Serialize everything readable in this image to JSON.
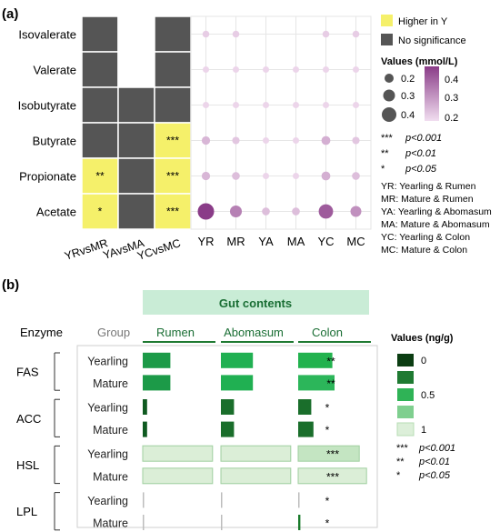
{
  "panel_a": {
    "label": "(a)",
    "legend_higher": "Higher in Y",
    "legend_nosig": "No significance",
    "values_title": "Values (mmol/L)",
    "size_labels": [
      "0.2",
      "0.3",
      "0.4"
    ],
    "color_labels": [
      "0.4",
      "0.3",
      "0.2"
    ],
    "sig_notes": [
      {
        "stars": "***",
        "p": "p<0.001"
      },
      {
        "stars": "**",
        "p": "p<0.01"
      },
      {
        "stars": "*",
        "p": "p<0.05"
      }
    ],
    "abbrev": [
      "YR: Yearling & Rumen",
      "MR: Mature & Rumen",
      "YA: Yearling & Abomasum",
      "MA: Mature & Abomasum",
      "YC: Yearling & Colon",
      "MC: Mature & Colon"
    ],
    "colors": {
      "higher": "#f5f06a",
      "nosig": "#555555",
      "dot_low": "#ecd5ea",
      "dot_high": "#8a3c88",
      "grid": "#e6e6e6"
    }
  },
  "panel_b": {
    "label": "(b)",
    "banner": "Gut contents",
    "col_enzyme": "Enzyme",
    "col_group": "Group",
    "legend_title": "Values (ng/g)",
    "legend_labels": [
      "0",
      "",
      "0.5",
      "",
      "1"
    ],
    "legend_colors": [
      "#0b3d12",
      "#1f7a32",
      "#2fb356",
      "#7fcf8f",
      "#dcefd9"
    ],
    "sig_notes": [
      {
        "stars": "***",
        "p": "p<0.001"
      },
      {
        "stars": "**",
        "p": "p<0.01"
      },
      {
        "stars": "*",
        "p": "p<0.05"
      }
    ],
    "colors": {
      "banner_bg": "#c9ecd6",
      "header_text": "#1a6e34"
    }
  },
  "chart_data": [
    {
      "type": "heatmap",
      "rows": [
        "Isovalerate",
        "Valerate",
        "Isobutyrate",
        "Butyrate",
        "Propionate",
        "Acetate"
      ],
      "columns": [
        "YRvsMR",
        "YAvsMA",
        "YCvsMC"
      ],
      "cells": [
        [
          "nosig",
          "none",
          "nosig"
        ],
        [
          "nosig",
          "none",
          "nosig"
        ],
        [
          "nosig",
          "nosig",
          "nosig"
        ],
        [
          "nosig",
          "nosig",
          "higher"
        ],
        [
          "higher",
          "nosig",
          "higher"
        ],
        [
          "higher",
          "nosig",
          "higher"
        ]
      ],
      "stars": [
        [
          "",
          "",
          ""
        ],
        [
          "",
          "",
          ""
        ],
        [
          "",
          "",
          ""
        ],
        [
          "",
          "",
          "***"
        ],
        [
          "**",
          "",
          "***"
        ],
        [
          "*",
          "",
          "***"
        ]
      ]
    },
    {
      "type": "scatter",
      "rows": [
        "Isovalerate",
        "Valerate",
        "Isobutyrate",
        "Butyrate",
        "Propionate",
        "Acetate"
      ],
      "columns": [
        "YR",
        "MR",
        "YA",
        "MA",
        "YC",
        "MC"
      ],
      "values": [
        [
          0.21,
          0.21,
          null,
          null,
          0.21,
          0.21
        ],
        [
          0.2,
          0.2,
          0.2,
          0.2,
          0.2,
          0.2
        ],
        [
          0.2,
          0.2,
          0.2,
          0.2,
          0.2,
          0.2
        ],
        [
          0.24,
          0.22,
          0.2,
          0.2,
          0.25,
          0.22
        ],
        [
          0.24,
          0.23,
          0.2,
          0.2,
          0.25,
          0.23
        ],
        [
          0.43,
          0.31,
          0.23,
          0.23,
          0.36,
          0.29
        ]
      ],
      "size_range": [
        0.2,
        0.4
      ],
      "color_range": [
        0.2,
        0.4
      ]
    },
    {
      "type": "bar",
      "orientation": "horizontal",
      "enzymes": [
        "FAS",
        "ACC",
        "HSL",
        "LPL"
      ],
      "groups": [
        "Yearling",
        "Mature"
      ],
      "columns": [
        "Rumen",
        "Abomasum",
        "Colon"
      ],
      "values": [
        [
          [
            0.38,
            0.44,
            0.47
          ],
          [
            0.38,
            0.44,
            0.5
          ]
        ],
        [
          [
            0.06,
            0.18,
            0.18
          ],
          [
            0.06,
            0.18,
            0.21
          ]
        ],
        [
          [
            0.96,
            0.96,
            0.84
          ],
          [
            0.96,
            0.96,
            0.94
          ]
        ],
        [
          [
            0.01,
            0.01,
            0.01
          ],
          [
            0.01,
            0.01,
            0.03
          ]
        ]
      ],
      "colors": [
        [
          [
            "#1c9a48",
            "#20b052",
            "#22b24e"
          ],
          [
            "#1c9a48",
            "#20b052",
            "#2cb65a"
          ]
        ],
        [
          [
            "#0f5a20",
            "#1a6e2b",
            "#1a6e2b"
          ],
          [
            "#0f5a20",
            "#1a6e2b",
            "#1a6e2b"
          ]
        ],
        [
          [
            "#dbeed7",
            "#dbeed7",
            "#c4e5c2"
          ],
          [
            "#dbeed7",
            "#dbeed7",
            "#dbeed7"
          ]
        ],
        [
          [
            "#bcbcbc",
            "#bcbcbc",
            "#bcbcbc"
          ],
          [
            "#bcbcbc",
            "#bcbcbc",
            "#1a7a2b"
          ]
        ]
      ],
      "stars": [
        [
          [
            "",
            "",
            "**"
          ],
          [
            "",
            "",
            "**"
          ]
        ],
        [
          [
            "",
            "",
            "*"
          ],
          [
            "",
            "",
            "*"
          ]
        ],
        [
          [
            "",
            "",
            "***"
          ],
          [
            "",
            "",
            "***"
          ]
        ],
        [
          [
            "",
            "",
            "*"
          ],
          [
            "",
            "",
            "*"
          ]
        ]
      ]
    }
  ]
}
